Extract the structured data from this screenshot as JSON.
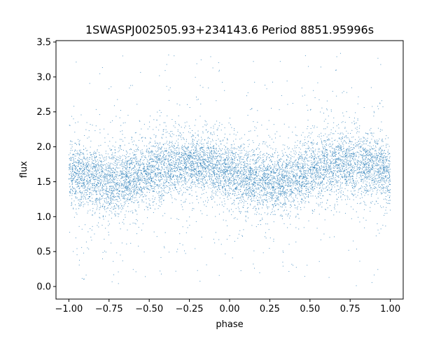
{
  "chart_data": {
    "type": "scatter",
    "title": "1SWASPJ002505.93+234143.6 Period 8851.95996s",
    "xlabel": "phase",
    "ylabel": "flux",
    "xlim": [
      -1.08,
      1.08
    ],
    "ylim": [
      -0.18,
      3.52
    ],
    "x_ticks": [
      -1.0,
      -0.75,
      -0.5,
      -0.25,
      0.0,
      0.25,
      0.5,
      0.75,
      1.0
    ],
    "x_tick_labels": [
      "−1.00",
      "−0.75",
      "−0.50",
      "−0.25",
      "0.00",
      "0.25",
      "0.50",
      "0.75",
      "1.00"
    ],
    "y_ticks": [
      0.0,
      0.5,
      1.0,
      1.5,
      2.0,
      2.5,
      3.0,
      3.5
    ],
    "y_tick_labels": [
      "0.0",
      "0.5",
      "1.0",
      "1.5",
      "2.0",
      "2.5",
      "3.0",
      "3.5"
    ],
    "grid": false,
    "legend": "none",
    "marker_color": "#1f77b4",
    "phase_range": [
      -1.0,
      1.0
    ],
    "mean_flux": 1.63,
    "amplitude": 0.13,
    "max_flux_phase": [
      -0.25,
      0.75
    ],
    "min_flux_phase": [
      0.25,
      -0.75
    ],
    "core_spread_sigma": 0.22,
    "outlier_flux_range": [
      0.0,
      3.35
    ]
  }
}
